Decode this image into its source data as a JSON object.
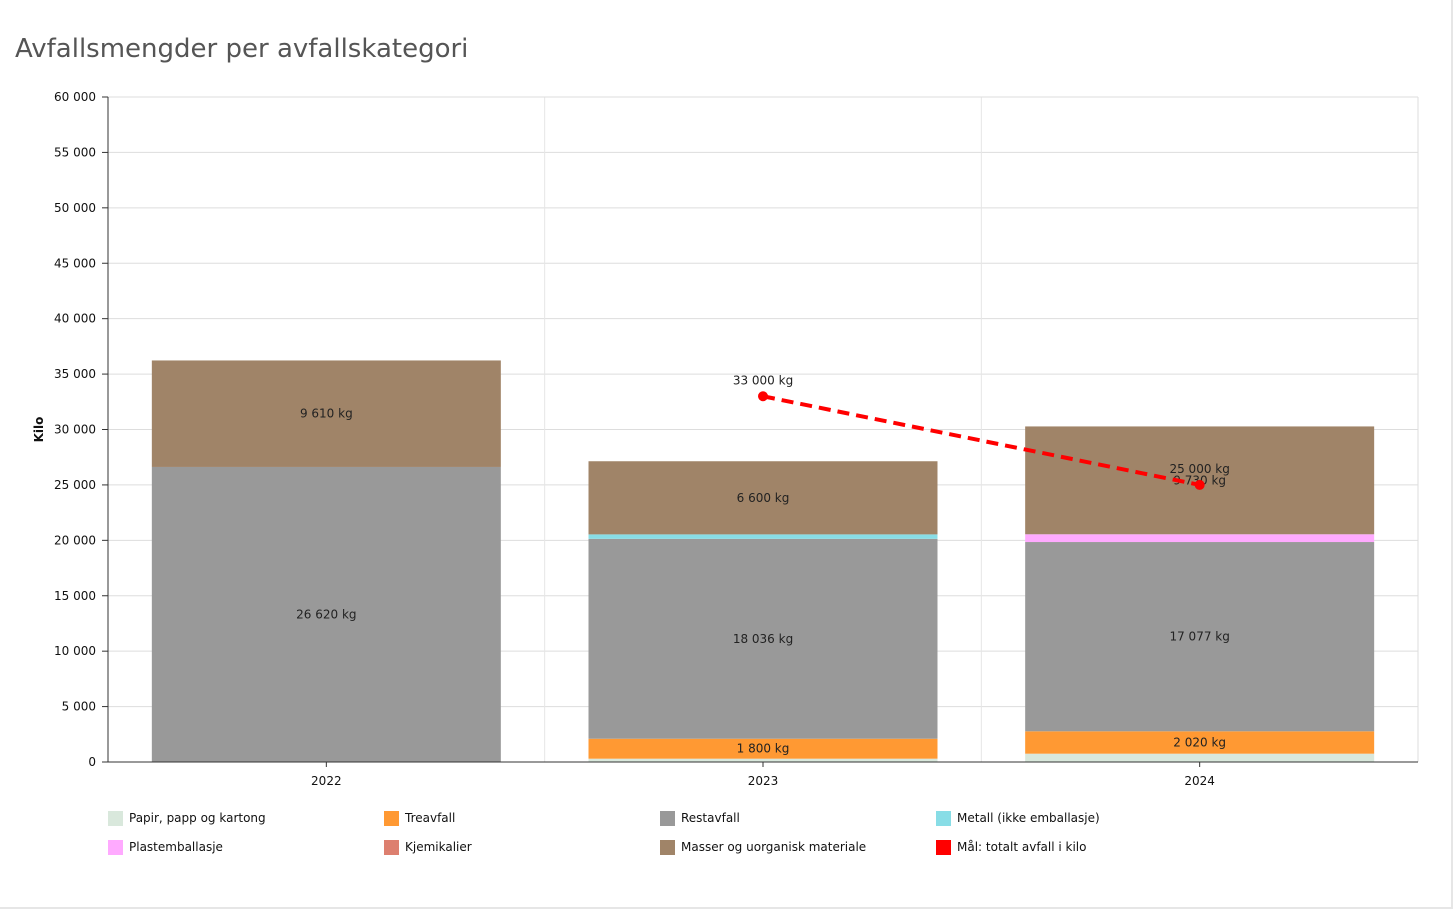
{
  "title": "Avfallsmengder per avfallskategori",
  "chart_data": {
    "type": "bar",
    "stacked": true,
    "categories": [
      "2022",
      "2023",
      "2024"
    ],
    "ylabel": "Kilo",
    "ylim": [
      0,
      60000
    ],
    "yticks": [
      0,
      5000,
      10000,
      15000,
      20000,
      25000,
      30000,
      35000,
      40000,
      45000,
      50000,
      55000,
      60000
    ],
    "ytick_labels": [
      "0",
      "5 000",
      "10 000",
      "15 000",
      "20 000",
      "25 000",
      "30 000",
      "35 000",
      "40 000",
      "45 000",
      "50 000",
      "55 000",
      "60 000"
    ],
    "grid": true,
    "legend_position": "bottom",
    "series": [
      {
        "name": "Papir, papp og kartong",
        "color": "#d9e8dc",
        "values": [
          0,
          300,
          750
        ],
        "labels": [
          "",
          "",
          ""
        ]
      },
      {
        "name": "Treavfall",
        "color": "#ff9933",
        "values": [
          0,
          1800,
          2020
        ],
        "labels": [
          "",
          "1 800 kg",
          "2 020 kg"
        ]
      },
      {
        "name": "Restavfall",
        "color": "#999999",
        "values": [
          26620,
          18036,
          17077
        ],
        "labels": [
          "26 620 kg",
          "18 036 kg",
          "17 077 kg"
        ]
      },
      {
        "name": "Metall (ikke emballasje)",
        "color": "#88dde6",
        "values": [
          0,
          400,
          0
        ],
        "labels": [
          "",
          "",
          ""
        ]
      },
      {
        "name": "Plastemballasje",
        "color": "#ffaaff",
        "values": [
          0,
          0,
          700
        ],
        "labels": [
          "",
          "",
          ""
        ]
      },
      {
        "name": "Kjemikalier",
        "color": "#dd7f6f",
        "values": [
          0,
          0,
          0
        ],
        "labels": [
          "",
          "",
          ""
        ]
      },
      {
        "name": "Masser og uorganisk materiale",
        "color": "#a08468",
        "values": [
          9610,
          6600,
          9730
        ],
        "labels": [
          "9 610 kg",
          "6 600 kg",
          "9 730 kg"
        ]
      }
    ],
    "target_line": {
      "name": "Mål: totalt avfall i kilo",
      "color": "#ff0000",
      "style": "dashed",
      "points": [
        {
          "x": "2023",
          "y": 33000,
          "label": "33 000 kg"
        },
        {
          "x": "2024",
          "y": 25000,
          "label": "25 000 kg"
        }
      ]
    }
  }
}
